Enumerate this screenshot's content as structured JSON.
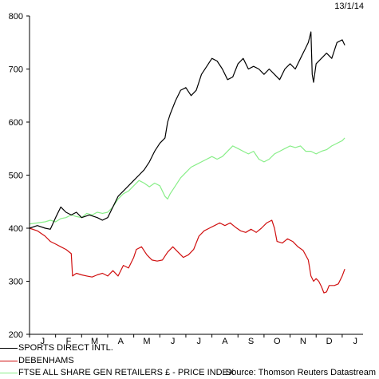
{
  "date": "13/1/14",
  "source": "Source: Thomson Reuters Datastream",
  "chart_data": {
    "type": "line",
    "x_tick_labels": [
      "J",
      "F",
      "M",
      "A",
      "M",
      "J",
      "J",
      "A",
      "S",
      "O",
      "N",
      "D",
      "J"
    ],
    "y_ticks": [
      200,
      300,
      400,
      500,
      600,
      700,
      800
    ],
    "ylim": [
      200,
      800
    ],
    "grid": false,
    "legend_position": "bottom-left",
    "series": [
      {
        "name": "SPORTS DIRECT INTL.",
        "color": "#000000",
        "values": [
          [
            0,
            400
          ],
          [
            0.3,
            405
          ],
          [
            0.6,
            400
          ],
          [
            0.8,
            398
          ],
          [
            1.0,
            420
          ],
          [
            1.2,
            440
          ],
          [
            1.4,
            430
          ],
          [
            1.6,
            425
          ],
          [
            1.8,
            430
          ],
          [
            2.0,
            420
          ],
          [
            2.3,
            425
          ],
          [
            2.6,
            420
          ],
          [
            2.8,
            415
          ],
          [
            3.0,
            420
          ],
          [
            3.2,
            440
          ],
          [
            3.4,
            460
          ],
          [
            3.6,
            470
          ],
          [
            3.8,
            480
          ],
          [
            4.0,
            490
          ],
          [
            4.2,
            500
          ],
          [
            4.4,
            510
          ],
          [
            4.6,
            525
          ],
          [
            4.8,
            545
          ],
          [
            5.0,
            560
          ],
          [
            5.2,
            570
          ],
          [
            5.3,
            600
          ],
          [
            5.4,
            615
          ],
          [
            5.6,
            640
          ],
          [
            5.8,
            660
          ],
          [
            6.0,
            665
          ],
          [
            6.2,
            650
          ],
          [
            6.4,
            660
          ],
          [
            6.6,
            690
          ],
          [
            6.8,
            705
          ],
          [
            7.0,
            720
          ],
          [
            7.2,
            715
          ],
          [
            7.4,
            700
          ],
          [
            7.6,
            680
          ],
          [
            7.8,
            685
          ],
          [
            8.0,
            710
          ],
          [
            8.2,
            720
          ],
          [
            8.4,
            700
          ],
          [
            8.6,
            705
          ],
          [
            8.8,
            700
          ],
          [
            9.0,
            690
          ],
          [
            9.2,
            700
          ],
          [
            9.4,
            690
          ],
          [
            9.6,
            680
          ],
          [
            9.8,
            700
          ],
          [
            10.0,
            710
          ],
          [
            10.2,
            700
          ],
          [
            10.4,
            720
          ],
          [
            10.6,
            740
          ],
          [
            10.7,
            750
          ],
          [
            10.8,
            770
          ],
          [
            10.85,
            690
          ],
          [
            10.9,
            675
          ],
          [
            11.0,
            710
          ],
          [
            11.2,
            720
          ],
          [
            11.4,
            730
          ],
          [
            11.6,
            720
          ],
          [
            11.8,
            750
          ],
          [
            12.0,
            755
          ],
          [
            12.1,
            745
          ]
        ]
      },
      {
        "name": "DEBENHAMS",
        "color": "#d01010",
        "values": [
          [
            0,
            400
          ],
          [
            0.3,
            395
          ],
          [
            0.6,
            385
          ],
          [
            0.8,
            375
          ],
          [
            1.0,
            370
          ],
          [
            1.2,
            365
          ],
          [
            1.4,
            360
          ],
          [
            1.6,
            352
          ],
          [
            1.65,
            310
          ],
          [
            1.8,
            315
          ],
          [
            2.0,
            312
          ],
          [
            2.2,
            310
          ],
          [
            2.4,
            308
          ],
          [
            2.6,
            312
          ],
          [
            2.8,
            315
          ],
          [
            3.0,
            310
          ],
          [
            3.2,
            320
          ],
          [
            3.4,
            310
          ],
          [
            3.6,
            330
          ],
          [
            3.8,
            325
          ],
          [
            4.0,
            345
          ],
          [
            4.1,
            360
          ],
          [
            4.3,
            365
          ],
          [
            4.5,
            350
          ],
          [
            4.7,
            340
          ],
          [
            4.9,
            338
          ],
          [
            5.1,
            340
          ],
          [
            5.3,
            355
          ],
          [
            5.5,
            365
          ],
          [
            5.7,
            355
          ],
          [
            5.9,
            345
          ],
          [
            6.1,
            350
          ],
          [
            6.3,
            360
          ],
          [
            6.5,
            385
          ],
          [
            6.7,
            395
          ],
          [
            6.9,
            400
          ],
          [
            7.1,
            405
          ],
          [
            7.3,
            410
          ],
          [
            7.5,
            405
          ],
          [
            7.7,
            410
          ],
          [
            7.9,
            402
          ],
          [
            8.1,
            395
          ],
          [
            8.3,
            392
          ],
          [
            8.5,
            398
          ],
          [
            8.7,
            392
          ],
          [
            8.9,
            400
          ],
          [
            9.1,
            410
          ],
          [
            9.3,
            415
          ],
          [
            9.4,
            400
          ],
          [
            9.5,
            375
          ],
          [
            9.7,
            372
          ],
          [
            9.9,
            380
          ],
          [
            10.1,
            375
          ],
          [
            10.3,
            365
          ],
          [
            10.5,
            358
          ],
          [
            10.7,
            340
          ],
          [
            10.8,
            310
          ],
          [
            10.9,
            300
          ],
          [
            11.0,
            305
          ],
          [
            11.1,
            300
          ],
          [
            11.2,
            290
          ],
          [
            11.3,
            278
          ],
          [
            11.4,
            280
          ],
          [
            11.5,
            292
          ],
          [
            11.7,
            292
          ],
          [
            11.85,
            295
          ],
          [
            12.0,
            310
          ],
          [
            12.1,
            323
          ]
        ]
      },
      {
        "name": "FTSE ALL SHARE GEN RETAILERS £ - PRICE INDEX",
        "color": "#88ee88",
        "values": [
          [
            0,
            408
          ],
          [
            0.3,
            410
          ],
          [
            0.6,
            412
          ],
          [
            0.8,
            415
          ],
          [
            1.0,
            412
          ],
          [
            1.2,
            418
          ],
          [
            1.4,
            420
          ],
          [
            1.6,
            425
          ],
          [
            1.8,
            422
          ],
          [
            2.0,
            420
          ],
          [
            2.2,
            428
          ],
          [
            2.4,
            425
          ],
          [
            2.6,
            430
          ],
          [
            2.8,
            428
          ],
          [
            3.0,
            430
          ],
          [
            3.2,
            440
          ],
          [
            3.4,
            455
          ],
          [
            3.6,
            465
          ],
          [
            3.8,
            470
          ],
          [
            4.0,
            480
          ],
          [
            4.2,
            490
          ],
          [
            4.4,
            485
          ],
          [
            4.6,
            478
          ],
          [
            4.8,
            485
          ],
          [
            5.0,
            480
          ],
          [
            5.2,
            460
          ],
          [
            5.3,
            455
          ],
          [
            5.4,
            465
          ],
          [
            5.6,
            480
          ],
          [
            5.8,
            495
          ],
          [
            6.0,
            505
          ],
          [
            6.2,
            515
          ],
          [
            6.4,
            520
          ],
          [
            6.6,
            525
          ],
          [
            6.8,
            530
          ],
          [
            7.0,
            535
          ],
          [
            7.2,
            530
          ],
          [
            7.4,
            535
          ],
          [
            7.6,
            545
          ],
          [
            7.8,
            555
          ],
          [
            8.0,
            550
          ],
          [
            8.2,
            545
          ],
          [
            8.4,
            540
          ],
          [
            8.6,
            545
          ],
          [
            8.8,
            530
          ],
          [
            9.0,
            525
          ],
          [
            9.2,
            530
          ],
          [
            9.4,
            540
          ],
          [
            9.6,
            545
          ],
          [
            9.8,
            550
          ],
          [
            10.0,
            555
          ],
          [
            10.2,
            552
          ],
          [
            10.4,
            555
          ],
          [
            10.6,
            545
          ],
          [
            10.8,
            545
          ],
          [
            11.0,
            540
          ],
          [
            11.2,
            545
          ],
          [
            11.4,
            548
          ],
          [
            11.6,
            555
          ],
          [
            11.8,
            560
          ],
          [
            12.0,
            565
          ],
          [
            12.1,
            570
          ]
        ]
      }
    ]
  }
}
